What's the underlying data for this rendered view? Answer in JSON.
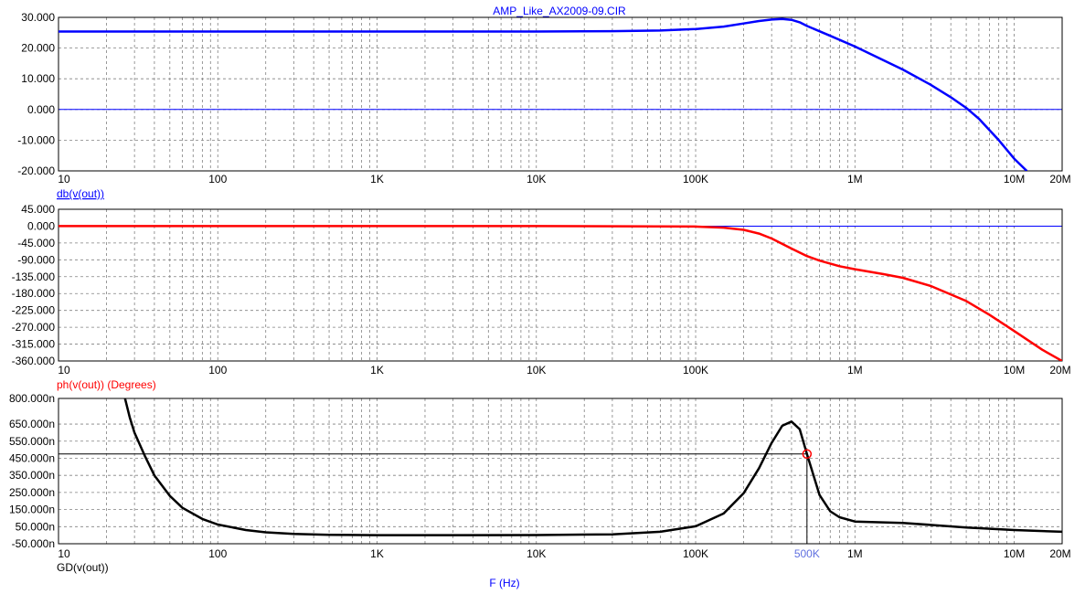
{
  "title": "AMP_Like_AX2009-09.CIR",
  "x_axis_label": "F (Hz)",
  "x_tick_labels": [
    "10",
    "100",
    "1K",
    "10K",
    "100K",
    "1M",
    "10M",
    "20M"
  ],
  "xlim": [
    10,
    20000000
  ],
  "colors": {
    "background": "#ffffff",
    "frame": "#000000",
    "grid": "#808080",
    "title": "#0000ff",
    "db_trace": "#0000ff",
    "ph_trace": "#ff0000",
    "gd_trace": "#000000",
    "zero_line": "#0000ff",
    "cursor": "#000000",
    "cursor_marker": "#ff0000",
    "cursor_label": "#6070e0"
  },
  "cursor": {
    "x": 500000,
    "y": 475,
    "label": "500K"
  },
  "chart_data": [
    {
      "type": "line",
      "xscale": "log",
      "ylabel": "db(v(out))",
      "ylim": [
        -20,
        30
      ],
      "ytick_labels": [
        "30.000",
        "20.000",
        "10.000",
        "0.000",
        "-10.000",
        "-20.000"
      ],
      "yticks": [
        30,
        20,
        10,
        0,
        -10,
        -20
      ],
      "zero_line": 0,
      "series": [
        {
          "x": [
            10,
            100,
            1000,
            10000,
            30000,
            60000,
            100000,
            150000,
            200000,
            250000,
            300000,
            350000,
            400000,
            450000,
            500000,
            700000,
            1000000,
            2000000,
            3000000,
            4000000,
            5000000,
            6000000,
            8000000,
            10000000,
            12000000
          ],
          "values": [
            25.4,
            25.4,
            25.4,
            25.4,
            25.5,
            25.7,
            26.2,
            27.0,
            28.0,
            28.8,
            29.3,
            29.5,
            29.2,
            28.4,
            27.2,
            24.0,
            20.5,
            13.0,
            8.0,
            4.0,
            0.5,
            -3.0,
            -10.0,
            -16.0,
            -20.0
          ]
        }
      ]
    },
    {
      "type": "line",
      "xscale": "log",
      "ylabel": "ph(v(out)) (Degrees)",
      "ylim": [
        -360,
        45
      ],
      "ytick_labels": [
        "45.000",
        "0.000",
        "-45.000",
        "-90.000",
        "-135.000",
        "-180.000",
        "-225.000",
        "-270.000",
        "-315.000",
        "-360.000"
      ],
      "yticks": [
        45,
        0,
        -45,
        -90,
        -135,
        -180,
        -225,
        -270,
        -315,
        -360
      ],
      "zero_line": 0,
      "series": [
        {
          "x": [
            10,
            1000,
            10000,
            100000,
            150000,
            200000,
            250000,
            300000,
            400000,
            500000,
            600000,
            800000,
            1000000,
            1500000,
            2000000,
            3000000,
            5000000,
            7000000,
            10000000,
            15000000,
            20000000
          ],
          "values": [
            0,
            0,
            0,
            -1,
            -4,
            -10,
            -20,
            -33,
            -60,
            -80,
            -92,
            -107,
            -115,
            -128,
            -138,
            -160,
            -200,
            -237,
            -280,
            -330,
            -360
          ]
        }
      ]
    },
    {
      "type": "line",
      "xscale": "log",
      "ylabel": "GD(v(out))",
      "ylim": [
        -50,
        800
      ],
      "ytick_labels": [
        "800.000n",
        "650.000n",
        "550.000n",
        "450.000n",
        "350.000n",
        "250.000n",
        "150.000n",
        "50.000n",
        "-50.000n"
      ],
      "yticks": [
        800,
        650,
        550,
        450,
        350,
        250,
        150,
        50,
        -50
      ],
      "series": [
        {
          "x": [
            26,
            28,
            30,
            35,
            40,
            50,
            60,
            80,
            100,
            150,
            200,
            300,
            500,
            1000,
            3000,
            10000,
            30000,
            60000,
            100000,
            150000,
            200000,
            250000,
            300000,
            350000,
            400000,
            450000,
            500000,
            600000,
            700000,
            800000,
            1000000,
            2000000,
            5000000,
            10000000,
            20000000
          ],
          "values": [
            810,
            690,
            600,
            460,
            350,
            230,
            160,
            95,
            62,
            30,
            17,
            7,
            2,
            0,
            0,
            1,
            5,
            20,
            52,
            127,
            245,
            392,
            540,
            640,
            665,
            620,
            475,
            235,
            140,
            105,
            80,
            72,
            45,
            30,
            20
          ]
        }
      ]
    }
  ]
}
